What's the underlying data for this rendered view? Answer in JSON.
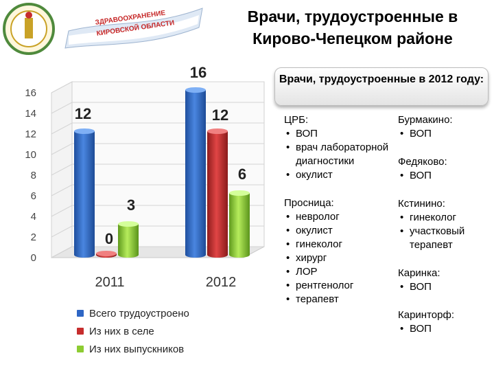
{
  "header": {
    "banner_line1": "ЗДРАВООХРАНЕНИЕ",
    "banner_line2": "КИРОВСКОЙ ОБЛАСТИ",
    "title_line1": "Врачи, трудоустроенные в",
    "title_line2": "Кирово-Чепецком районе"
  },
  "colors": {
    "blue": "#2e66c4",
    "red": "#c62d2d",
    "green": "#8dcc32"
  },
  "chart_data": {
    "type": "bar",
    "categories": [
      "2011",
      "2012"
    ],
    "series": [
      {
        "name": "Всего трудоустроено",
        "values": [
          12,
          16
        ],
        "color": "#2e66c4"
      },
      {
        "name": "Из них в селе",
        "values": [
          0,
          12
        ],
        "color": "#c62d2d"
      },
      {
        "name": "Из них выпускников",
        "values": [
          3,
          6
        ],
        "color": "#8dcc32"
      }
    ],
    "data_labels": [
      [
        "12",
        "0",
        "3"
      ],
      [
        "16",
        "12",
        "6"
      ]
    ],
    "yticks": [
      "0",
      "2",
      "4",
      "6",
      "8",
      "10",
      "12",
      "14",
      "16"
    ],
    "ylim": [
      0,
      16
    ],
    "legend_position": "bottom",
    "grid": true,
    "style": "3d"
  },
  "info": {
    "box_title": "Врачи, трудоустроенные в 2012 году:",
    "left_groups": [
      {
        "title": "ЦРБ:",
        "items": [
          "ВОП",
          "врач лабораторной диагностики",
          "окулист"
        ]
      },
      {
        "title": "Просница:",
        "items": [
          "невролог",
          "окулист",
          "гинеколог",
          "хирург",
          "ЛОР",
          "рентгенолог",
          "терапевт"
        ]
      }
    ],
    "right_groups": [
      {
        "title": "Бурмакино:",
        "items": [
          "ВОП"
        ]
      },
      {
        "title": "Федяково:",
        "items": [
          "ВОП"
        ]
      },
      {
        "title": "Кстинино:",
        "items": [
          "гинеколог",
          "участковый терапевт"
        ]
      },
      {
        "title": "Каринка:",
        "items": [
          "ВОП"
        ]
      },
      {
        "title": "Каринторф:",
        "items": [
          "ВОП"
        ]
      }
    ]
  }
}
